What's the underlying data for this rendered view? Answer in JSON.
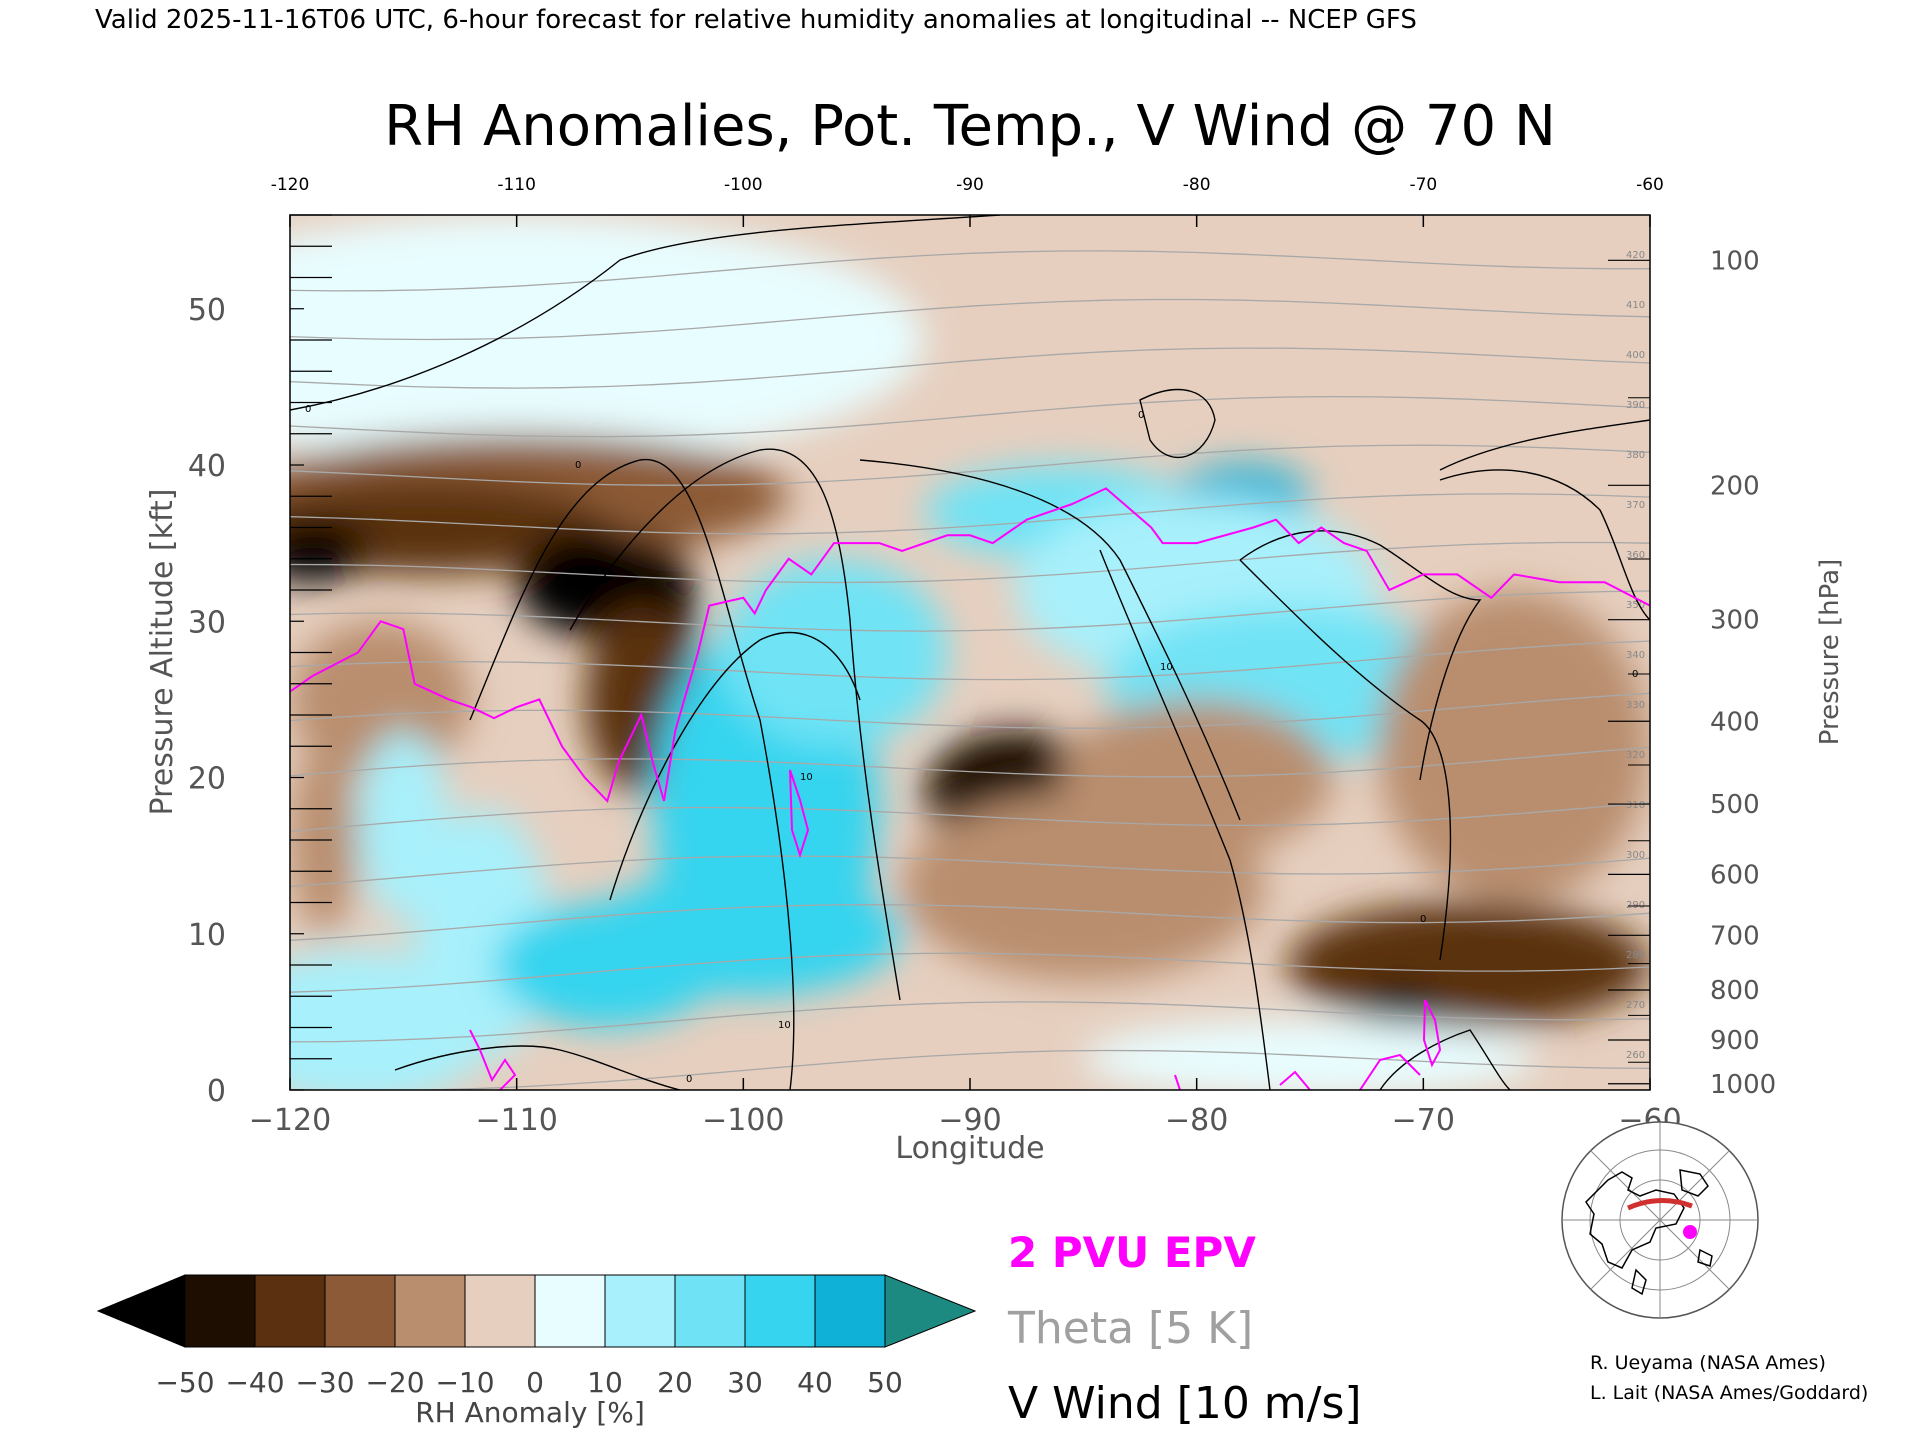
{
  "header": {
    "valid_line": "Valid 2025-11-16T06 UTC, 6-hour forecast for relative humidity anomalies at longitudinal -- NCEP GFS"
  },
  "chart_data": {
    "type": "heatmap",
    "title": "RH Anomalies, Pot. Temp., V Wind @ 70 N",
    "xlabel": "Longitude",
    "ylabel": "Pressure Altitude [kft]",
    "ylabel_right": "Pressure [hPa]",
    "xlim": [
      -120,
      -60
    ],
    "ylim": [
      0,
      56
    ],
    "x_ticks": [
      -120,
      -110,
      -100,
      -90,
      -80,
      -70,
      -60
    ],
    "x_tick_labels": [
      "−120",
      "−110",
      "−100",
      "−90",
      "−80",
      "−70",
      "−60"
    ],
    "top_tick_labels": [
      "-120",
      "-110",
      "-100",
      "-90",
      "-80",
      "-70",
      "-60"
    ],
    "y_ticks": [
      0,
      10,
      20,
      30,
      40,
      50
    ],
    "y_tick_labels": [
      "0",
      "10",
      "20",
      "30",
      "40",
      "50"
    ],
    "pressure_ticks": [
      {
        "hpa": 100,
        "kft": 53.1,
        "label": "100"
      },
      {
        "hpa": 200,
        "kft": 38.7,
        "label": "200"
      },
      {
        "hpa": 300,
        "kft": 30.1,
        "label": "300"
      },
      {
        "hpa": 400,
        "kft": 23.6,
        "label": "400"
      },
      {
        "hpa": 500,
        "kft": 18.3,
        "label": "500"
      },
      {
        "hpa": 600,
        "kft": 13.8,
        "label": "600"
      },
      {
        "hpa": 700,
        "kft": 9.9,
        "label": "700"
      },
      {
        "hpa": 800,
        "kft": 6.4,
        "label": "800"
      },
      {
        "hpa": 900,
        "kft": 3.2,
        "label": "900"
      },
      {
        "hpa": 1000,
        "kft": 0.4,
        "label": "1000"
      }
    ],
    "colorbar": {
      "label": "RH Anomaly [%]",
      "levels": [
        -50,
        -40,
        -30,
        -20,
        -10,
        0,
        10,
        20,
        30,
        40,
        50
      ],
      "tick_labels": [
        "−50",
        "−40",
        "−30",
        "−20",
        "−10",
        "0",
        "10",
        "20",
        "30",
        "40",
        "50"
      ],
      "colors": [
        "#1e0e02",
        "#5a3010",
        "#8c5a36",
        "#b98e6e",
        "#e6cfbf",
        "#e8fdff",
        "#a8f0fb",
        "#6fe3f5",
        "#36d4ef",
        "#10b1d6"
      ],
      "under_color": "#000000",
      "over_color": "#1c8a80"
    },
    "rh_anomaly_blobs": [
      {
        "lon": -110,
        "kft": 48,
        "rlon": 18,
        "rkft": 8,
        "value": 0
      },
      {
        "lon": -110,
        "kft": 38,
        "rlon": 12,
        "rkft": 4,
        "value": -28
      },
      {
        "lon": -114,
        "kft": 36,
        "rlon": 8,
        "rkft": 3,
        "value": -38
      },
      {
        "lon": -119,
        "kft": 34.5,
        "rlon": 2.5,
        "rkft": 2,
        "value": -52
      },
      {
        "lon": -106.5,
        "kft": 32.5,
        "rlon": 3.5,
        "rkft": 3.5,
        "value": -55
      },
      {
        "lon": -103.5,
        "kft": 30.5,
        "rlon": 1.4,
        "rkft": 4.5,
        "value": -55
      },
      {
        "lon": -104.5,
        "kft": 25,
        "rlon": 2.5,
        "rkft": 6,
        "value": -35
      },
      {
        "lon": -116,
        "kft": 25,
        "rlon": 4,
        "rkft": 5,
        "value": -12
      },
      {
        "lon": -118.5,
        "kft": 16,
        "rlon": 1.5,
        "rkft": 6,
        "value": -12
      },
      {
        "lon": -115,
        "kft": 17,
        "rlon": 2,
        "rkft": 6,
        "value": 15
      },
      {
        "lon": -111.5,
        "kft": 10,
        "rlon": 3,
        "rkft": 8,
        "value": 15
      },
      {
        "lon": -106,
        "kft": 8,
        "rlon": 5,
        "rkft": 4,
        "value": 32
      },
      {
        "lon": -99,
        "kft": 18,
        "rlon": 5,
        "rkft": 12,
        "value": 30
      },
      {
        "lon": -96,
        "kft": 28,
        "rlon": 5,
        "rkft": 6,
        "value": 28
      },
      {
        "lon": -100,
        "kft": 10,
        "rlon": 7,
        "rkft": 4,
        "value": 38
      },
      {
        "lon": -86,
        "kft": 37,
        "rlon": 6,
        "rkft": 3,
        "value": 28
      },
      {
        "lon": -78,
        "kft": 38,
        "rlon": 3,
        "rkft": 2,
        "value": 40
      },
      {
        "lon": -80,
        "kft": 32,
        "rlon": 8,
        "rkft": 6,
        "value": 18
      },
      {
        "lon": -76,
        "kft": 26,
        "rlon": 8,
        "rkft": 5,
        "value": 20
      },
      {
        "lon": -88,
        "kft": 19,
        "rlon": 4,
        "rkft": 4,
        "value": -42
      },
      {
        "lon": -85,
        "kft": 13,
        "rlon": 8,
        "rkft": 6,
        "value": -15
      },
      {
        "lon": -80,
        "kft": 20,
        "rlon": 6,
        "rkft": 5,
        "value": -12
      },
      {
        "lon": -66,
        "kft": 22,
        "rlon": 6,
        "rkft": 10,
        "value": -20
      },
      {
        "lon": -68,
        "kft": 8,
        "rlon": 8,
        "rkft": 4,
        "value": -32
      },
      {
        "lon": -71,
        "kft": 5,
        "rlon": 1.5,
        "rkft": 1.5,
        "value": -55
      },
      {
        "lon": -75,
        "kft": 2,
        "rlon": 10,
        "rkft": 2.5,
        "value": 5
      },
      {
        "lon": -117,
        "kft": 4,
        "rlon": 6,
        "rkft": 5,
        "value": 15
      }
    ],
    "theta_levels_k": [
      260,
      270,
      280,
      290,
      300,
      310,
      320,
      330,
      340,
      350,
      360,
      370,
      380,
      390,
      400,
      410,
      420
    ],
    "vwind_contour_labels": [
      "-10",
      "0",
      "10"
    ],
    "epv_2pvu_line": [
      [
        -120,
        25.5
      ],
      [
        -119,
        26.5
      ],
      [
        -117,
        28
      ],
      [
        -116,
        30
      ],
      [
        -115,
        29.5
      ],
      [
        -114.5,
        26
      ],
      [
        -113,
        25
      ],
      [
        -112,
        24.5
      ],
      [
        -111,
        23.8
      ],
      [
        -110,
        24.5
      ],
      [
        -109,
        25
      ],
      [
        -108,
        22
      ],
      [
        -107,
        20
      ],
      [
        -106,
        18.5
      ],
      [
        -105.5,
        21
      ],
      [
        -104.5,
        24
      ],
      [
        -104,
        21
      ],
      [
        -103.5,
        18.5
      ],
      [
        -103,
        23
      ],
      [
        -102,
        28
      ],
      [
        -101.5,
        31
      ],
      [
        -100,
        31.5
      ],
      [
        -99.5,
        30.5
      ],
      [
        -99,
        32
      ],
      [
        -98,
        34
      ],
      [
        -97,
        33
      ],
      [
        -96,
        35
      ],
      [
        -94,
        35
      ],
      [
        -93,
        34.5
      ],
      [
        -91,
        35.5
      ],
      [
        -90,
        35.5
      ],
      [
        -89,
        35
      ],
      [
        -87.5,
        36.5
      ],
      [
        -85.5,
        37.5
      ],
      [
        -84,
        38.5
      ],
      [
        -82,
        36
      ],
      [
        -81.5,
        35
      ],
      [
        -80,
        35
      ],
      [
        -77.5,
        36
      ],
      [
        -76.5,
        36.5
      ],
      [
        -75.5,
        35
      ],
      [
        -74.5,
        36
      ],
      [
        -73.5,
        35
      ],
      [
        -72.5,
        34.5
      ],
      [
        -71.5,
        32
      ],
      [
        -70,
        33
      ],
      [
        -68.5,
        33
      ],
      [
        -67,
        31.5
      ],
      [
        -66,
        33
      ],
      [
        -64,
        32.5
      ],
      [
        -62,
        32.5
      ],
      [
        -60,
        31
      ]
    ],
    "legend": [
      {
        "label": "2 PVU EPV",
        "color": "#ff00ff"
      },
      {
        "label": "Theta [5 K]",
        "color": "#a0a0a0"
      },
      {
        "label": "V Wind [10 m/s]",
        "color": "#000000"
      }
    ]
  },
  "inset_map": {
    "highlight_color": "#ff00ff",
    "transect_color": "#d03030"
  },
  "credits": {
    "line1": "R. Ueyama (NASA Ames)",
    "line2": "L. Lait (NASA Ames/Goddard)"
  }
}
